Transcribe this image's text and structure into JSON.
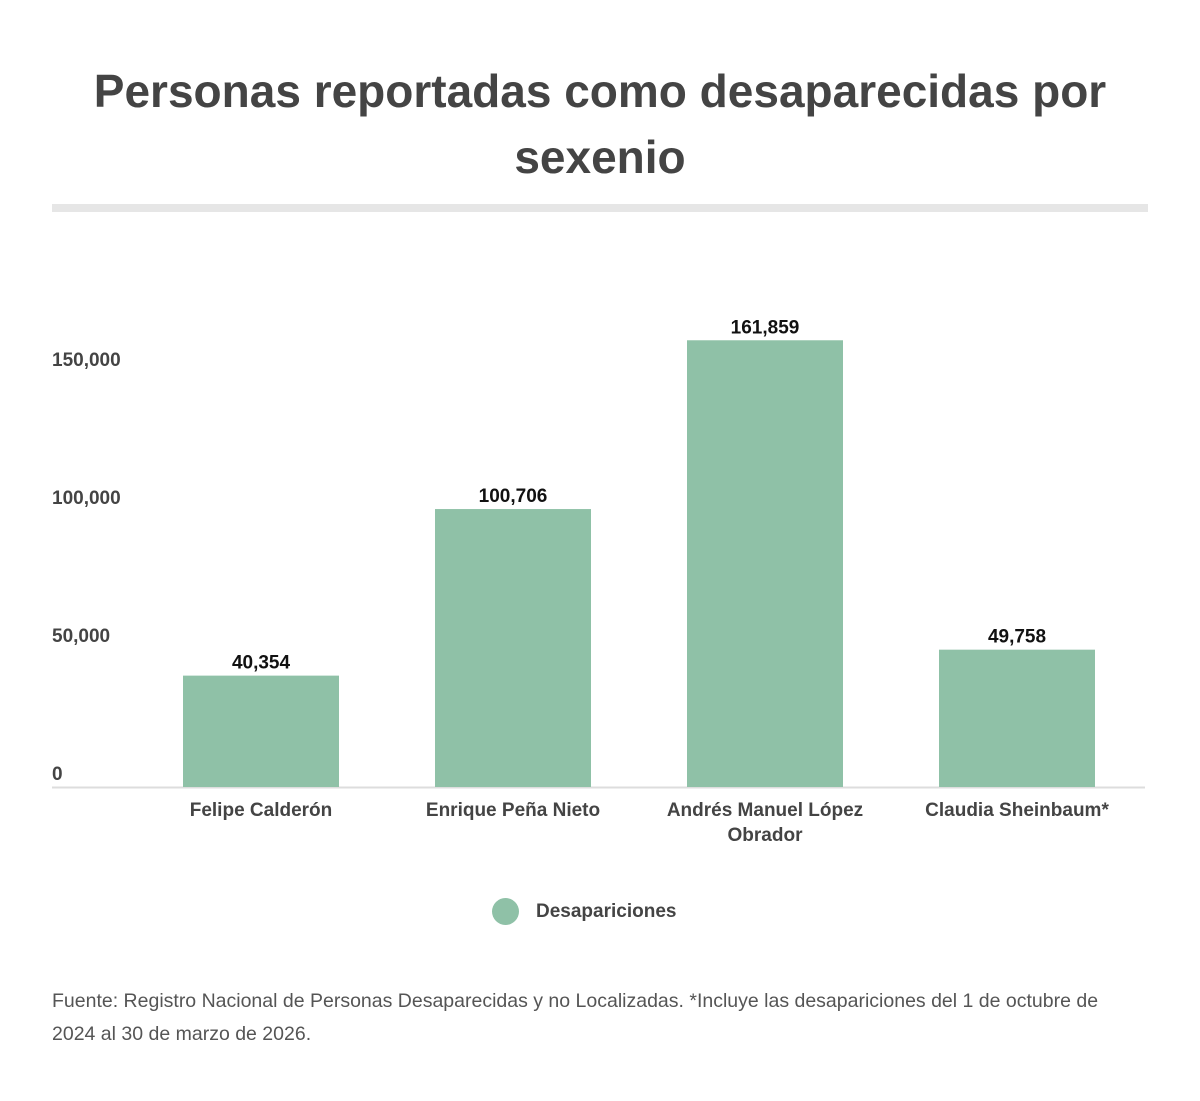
{
  "chart_data": {
    "type": "bar",
    "title": "Personas reportadas como desaparecidas por sexenio",
    "categories": [
      "Felipe Calderón",
      "Enrique Peña Nieto",
      "Andrés Manuel López Obrador",
      "Claudia Sheinbaum*"
    ],
    "category_lines": [
      [
        "Felipe Calderón"
      ],
      [
        "Enrique Peña Nieto"
      ],
      [
        "Andrés Manuel López",
        "Obrador"
      ],
      [
        "Claudia Sheinbaum*"
      ]
    ],
    "series": [
      {
        "name": "Desapariciones",
        "values": [
          40354,
          100706,
          161859,
          49758
        ],
        "color": "#8fc1a7"
      }
    ],
    "data_labels": [
      "40,354",
      "100,706",
      "161,859",
      "49,758"
    ],
    "yticks": [
      0,
      50000,
      100000,
      150000
    ],
    "ytick_labels": [
      "0",
      "50,000",
      "100,000",
      "150,000"
    ],
    "ylim": [
      0,
      165000
    ],
    "grid": false,
    "legend_placement": "bottom",
    "xlabel": "",
    "ylabel": ""
  },
  "source": " Fuente: Registro Nacional de Personas Desaparecidas y no Localizadas. *Incluye las desapariciones del 1 de octubre de 2024 al 30 de marzo de 2026."
}
